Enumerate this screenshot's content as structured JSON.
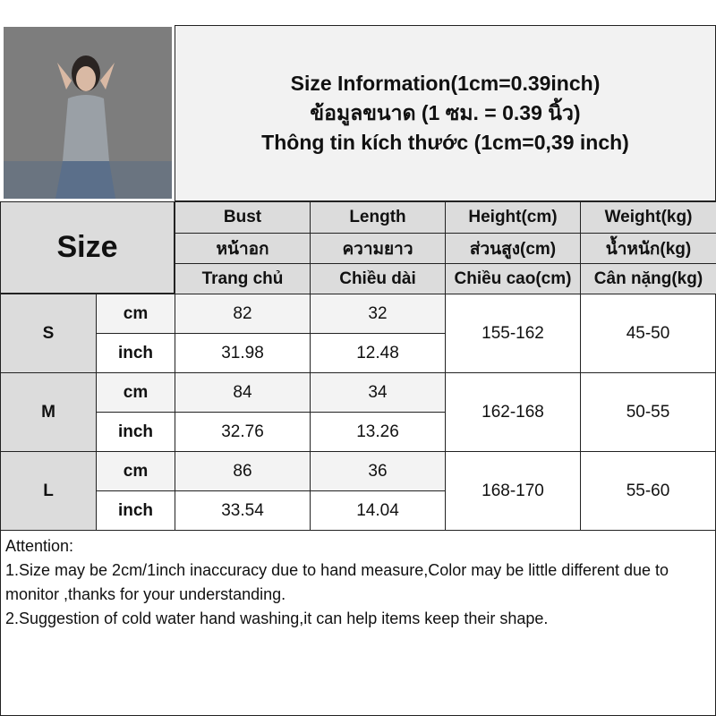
{
  "photo": {
    "icon": "model-photo"
  },
  "title": {
    "line1": "Size Information(1cm=0.39inch)",
    "line2": "ข้อมูลขนาด (1 ซม. = 0.39 นิ้ว)",
    "line3": "Thông tin kích thước (1cm=0,39 inch)"
  },
  "header": {
    "size": "Size",
    "columns": [
      {
        "en": "Bust",
        "th": "หน้าอก",
        "vi": "Trang chủ"
      },
      {
        "en": "Length",
        "th": "ความยาว",
        "vi": "Chiều dài"
      },
      {
        "en": "Height(cm)",
        "th": "ส่วนสูง(cm)",
        "vi": "Chiều cao(cm)"
      },
      {
        "en": "Weight(kg)",
        "th": "น้ำหนัก(kg)",
        "vi": "Cân nặng(kg)"
      }
    ]
  },
  "rows": [
    {
      "size": "S",
      "cm_label": "cm",
      "inch_label": "inch",
      "bust_cm": "82",
      "bust_in": "31.98",
      "length_cm": "32",
      "length_in": "12.48",
      "height": "155-162",
      "weight": "45-50"
    },
    {
      "size": "M",
      "cm_label": "cm",
      "inch_label": "inch",
      "bust_cm": "84",
      "bust_in": "32.76",
      "length_cm": "34",
      "length_in": "13.26",
      "height": "162-168",
      "weight": "50-55"
    },
    {
      "size": "L",
      "cm_label": "cm",
      "inch_label": "inch",
      "bust_cm": "86",
      "bust_in": "33.54",
      "length_cm": "36",
      "length_in": "14.04",
      "height": "168-170",
      "weight": "55-60"
    }
  ],
  "attention": {
    "title": "Attention:",
    "line1": "1.Size may be 2cm/1inch inaccuracy due to hand measure,Color may be little different due to monitor ,thanks for your understanding.",
    "line2": "2.Suggestion of cold water hand washing,it can help items keep their shape."
  }
}
